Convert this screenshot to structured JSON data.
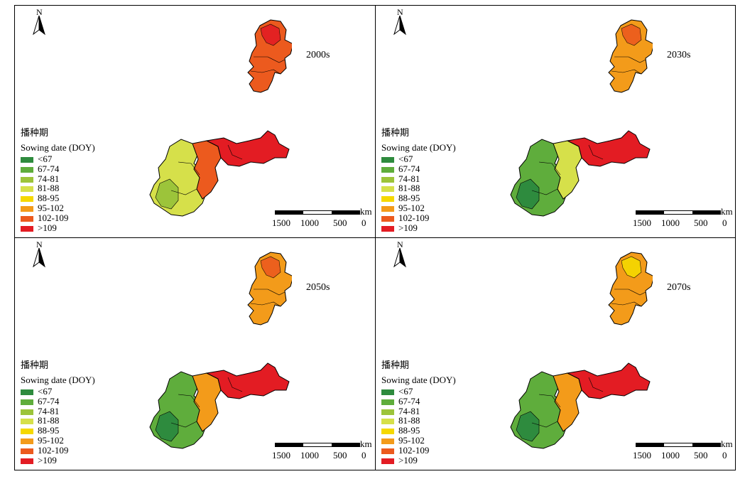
{
  "north_label": "N",
  "legend": {
    "title_cn": "播种期",
    "title_en": "Sowing date (DOY)",
    "items": [
      {
        "label": "<67",
        "color": "#2e8b3e"
      },
      {
        "label": "67-74",
        "color": "#5fad3c"
      },
      {
        "label": "74-81",
        "color": "#9cc43a"
      },
      {
        "label": "81-88",
        "color": "#d6e04a"
      },
      {
        "label": "88-95",
        "color": "#f5d800"
      },
      {
        "label": "95-102",
        "color": "#f39b1a"
      },
      {
        "label": "102-109",
        "color": "#ec5a1e"
      },
      {
        "label": ">109",
        "color": "#e31c23"
      }
    ]
  },
  "scale": {
    "unit": "km",
    "ticks": [
      "1500",
      "1000",
      "500",
      "0"
    ]
  },
  "panels": [
    {
      "period": "2000s",
      "north_fill": "#ec5a1e",
      "north_accent": "#e31c23",
      "south_west": "#d6e04a",
      "south_mid": "#ec5a1e",
      "south_east": "#e31c23",
      "south_accent": "#9cc43a"
    },
    {
      "period": "2030s",
      "north_fill": "#f39b1a",
      "north_accent": "#ec5a1e",
      "south_west": "#5fad3c",
      "south_mid": "#d6e04a",
      "south_east": "#e31c23",
      "south_accent": "#2e8b3e"
    },
    {
      "period": "2050s",
      "north_fill": "#f39b1a",
      "north_accent": "#ec5a1e",
      "south_west": "#5fad3c",
      "south_mid": "#f39b1a",
      "south_east": "#e31c23",
      "south_accent": "#2e8b3e"
    },
    {
      "period": "2070s",
      "north_fill": "#f39b1a",
      "north_accent": "#f5d800",
      "south_west": "#5fad3c",
      "south_mid": "#f39b1a",
      "south_east": "#e31c23",
      "south_accent": "#2e8b3e"
    }
  ]
}
